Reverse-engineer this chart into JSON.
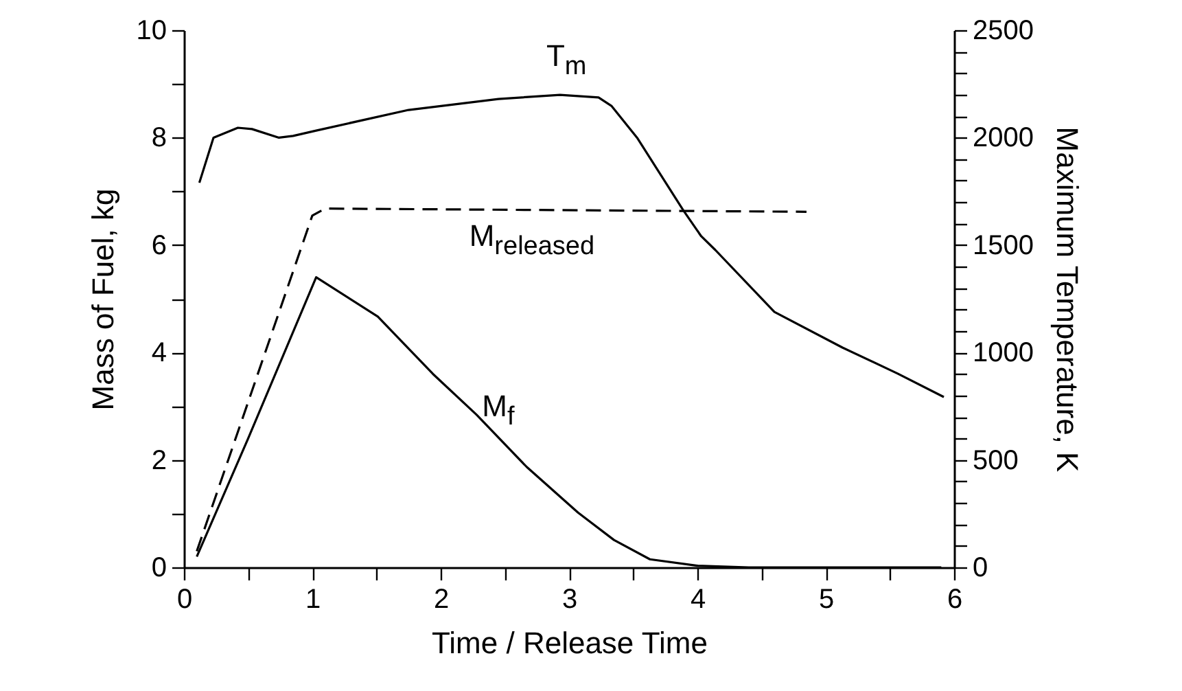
{
  "chart_data": {
    "type": "line",
    "xlabel": "Time / Release Time",
    "ylabel": "Mass of Fuel, kg",
    "y2label": "Maximum Temperature, K",
    "xlim": [
      0,
      6
    ],
    "xticks": [
      0,
      {
        "value": 0.5,
        "label": null
      },
      1,
      {
        "value": 1.5,
        "label": null
      },
      2,
      {
        "value": 2.5,
        "label": null
      },
      3,
      {
        "value": 3.5,
        "label": null
      },
      4,
      {
        "value": 4.5,
        "label": null
      },
      5,
      {
        "value": 5.5,
        "label": null
      },
      6
    ],
    "ylim": [
      0,
      10
    ],
    "yticks": [
      0,
      {
        "value": 1,
        "label": null
      },
      2,
      {
        "value": 3,
        "label": null
      },
      4,
      {
        "value": 5,
        "label": null
      },
      6,
      {
        "value": 7,
        "label": null
      },
      8,
      {
        "value": 9,
        "label": null
      },
      10
    ],
    "y2lim": [
      0,
      2500
    ],
    "y2ticks": [
      0,
      {
        "value": 100,
        "label": null
      },
      {
        "value": 200,
        "label": null
      },
      {
        "value": 300,
        "label": null
      },
      {
        "value": 400,
        "label": null
      },
      500,
      {
        "value": 600,
        "label": null
      },
      {
        "value": 700,
        "label": null
      },
      {
        "value": 800,
        "label": null
      },
      {
        "value": 900,
        "label": null
      },
      1000,
      {
        "value": 1100,
        "label": null
      },
      {
        "value": 1200,
        "label": null
      },
      {
        "value": 1300,
        "label": null
      },
      {
        "value": 1400,
        "label": null
      },
      1500,
      {
        "value": 1600,
        "label": null
      },
      {
        "value": 1700,
        "label": null
      },
      {
        "value": 1800,
        "label": null
      },
      {
        "value": 1900,
        "label": null
      },
      2000,
      {
        "value": 2100,
        "label": null
      },
      {
        "value": 2200,
        "label": null
      },
      {
        "value": 2300,
        "label": null
      },
      {
        "value": 2400,
        "label": null
      },
      2500
    ],
    "grid": false,
    "series": [
      {
        "name": "M$_{f}$",
        "color": "#000000",
        "line_style": "solid",
        "x": [
          0.1,
          0.5,
          1.03,
          1.51,
          1.94,
          2.28,
          2.67,
          3.07,
          3.35,
          3.63,
          4.0,
          4.4,
          5.0,
          5.9
        ],
        "values": [
          0.2,
          2.4,
          5.4,
          4.67,
          3.6,
          2.84,
          1.87,
          1.02,
          0.51,
          0.15,
          0.03,
          0.0,
          0.0,
          0.0
        ]
      },
      {
        "name": "M$_{released}$",
        "color": "#000000",
        "line_style": "dashed",
        "x": [
          0.1,
          1.0,
          1.1,
          4.85
        ],
        "values": [
          0.3,
          6.55,
          6.68,
          6.62
        ]
      },
      {
        "name": "T$_{m}$",
        "color": "#000000",
        "line_style": "solid",
        "axis": "y2",
        "x": [
          0.12,
          0.23,
          0.42,
          0.53,
          0.74,
          0.85,
          1.03,
          1.75,
          2.45,
          2.93,
          3.23,
          3.33,
          3.53,
          3.89,
          4.03,
          4.14,
          4.6,
          5.13,
          5.56,
          5.92
        ],
        "values": [
          1790,
          2000,
          2046,
          2040,
          2000,
          2008,
          2033,
          2129,
          2180,
          2199,
          2187,
          2148,
          2000,
          1662,
          1541,
          1477,
          1189,
          1023,
          902,
          793
        ]
      }
    ]
  }
}
